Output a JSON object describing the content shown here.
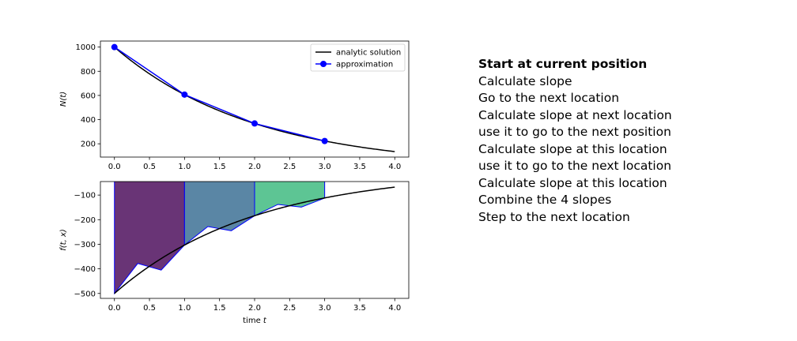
{
  "chart_data": [
    {
      "type": "line",
      "title": "",
      "xlabel": "",
      "ylabel": "N(t)",
      "xlim": [
        -0.2,
        4.2
      ],
      "ylim": [
        90,
        1050
      ],
      "xticks": [
        "0.0",
        "0.5",
        "1.0",
        "1.5",
        "2.0",
        "2.5",
        "3.0",
        "3.5",
        "4.0"
      ],
      "yticks": [
        "200",
        "400",
        "600",
        "800",
        "1000"
      ],
      "legend_position": "top-right",
      "series": [
        {
          "name": "analytic solution",
          "color": "#000000",
          "style": "line",
          "function": "1000*exp(-0.5*t)",
          "x_range": [
            0,
            4
          ]
        },
        {
          "name": "approximation",
          "color": "#0000ff",
          "style": "line-markers",
          "x": [
            0,
            1,
            2,
            3
          ],
          "y": [
            1000,
            607,
            368,
            223
          ]
        }
      ]
    },
    {
      "type": "area",
      "title": "",
      "xlabel": "time t",
      "ylabel": "f(t, x)",
      "xlim": [
        -0.2,
        4.2
      ],
      "ylim": [
        -520,
        -45
      ],
      "xticks": [
        "0.0",
        "0.5",
        "1.0",
        "1.5",
        "2.0",
        "2.5",
        "3.0",
        "3.5",
        "4.0"
      ],
      "yticks": [
        "-100",
        "-200",
        "-300",
        "-400",
        "-500"
      ],
      "analytic_curve": {
        "color": "#000000",
        "function": "-500*exp(-0.5*t)",
        "x_range": [
          0,
          4
        ]
      },
      "intervals": [
        {
          "fill": "#440154",
          "x": [
            0,
            0.333,
            0.667,
            1.0
          ],
          "y": [
            -500,
            -378,
            -405,
            -303
          ]
        },
        {
          "fill": "#31688e",
          "x": [
            1.0,
            1.333,
            1.667,
            2.0
          ],
          "y": [
            -303,
            -228,
            -245,
            -184
          ]
        },
        {
          "fill": "#35b779",
          "x": [
            2.0,
            2.333,
            2.667,
            3.0
          ],
          "y": [
            -184,
            -138,
            -149,
            -112
          ]
        }
      ]
    }
  ],
  "steps": [
    "Start at current position",
    "Calculate slope",
    "Go to the next location",
    "Calculate slope at next location",
    "use it to go to the next position",
    "Calculate slope at this location",
    "use it to go to the next location",
    "Calculate slope at this location",
    "Combine the 4 slopes",
    "Step to the next location"
  ]
}
